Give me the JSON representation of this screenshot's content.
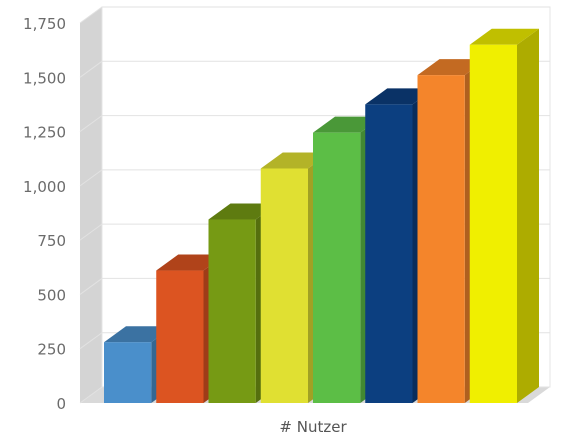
{
  "chart_data": {
    "type": "bar",
    "style": "3d",
    "xlabel": "# Nutzer",
    "ylabel": "",
    "ylim": [
      0,
      1750
    ],
    "y_ticks": [
      "0",
      "250",
      "500",
      "750",
      "1,000",
      "1,250",
      "1,500",
      "1,750"
    ],
    "grid": true,
    "categories": [
      "# Nutzer"
    ],
    "series": [
      {
        "values": [
          280
        ],
        "color": "#4a8fcb"
      },
      {
        "values": [
          610
        ],
        "color": "#dc5421"
      },
      {
        "values": [
          845
        ],
        "color": "#769a14"
      },
      {
        "values": [
          1080
        ],
        "color": "#e0e032"
      },
      {
        "values": [
          1245
        ],
        "color": "#5cbe46"
      },
      {
        "values": [
          1375
        ],
        "color": "#0c3f80"
      },
      {
        "values": [
          1510
        ],
        "color": "#f4852b"
      },
      {
        "values": [
          1650
        ],
        "color": "#f0ef00"
      }
    ]
  }
}
